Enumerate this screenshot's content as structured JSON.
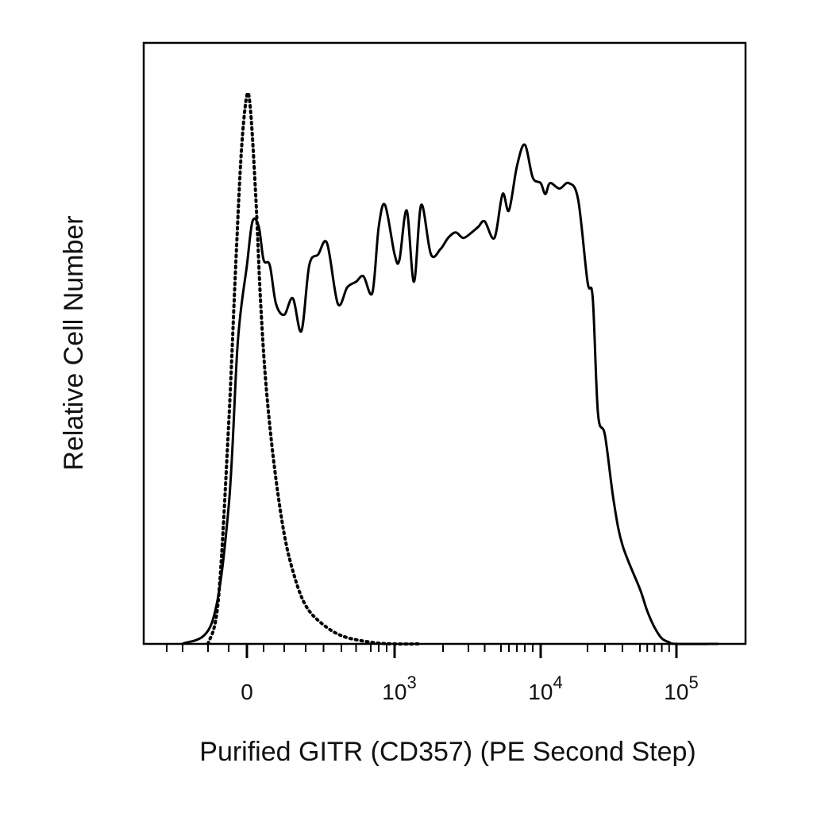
{
  "chart_data": {
    "type": "line",
    "xlabel": "Purified GITR (CD357) (PE Second Step)",
    "ylabel": "Relative Cell Number",
    "xscale": "biexponential (logicle)",
    "xlim": [
      -500,
      200000
    ],
    "ylim": [
      0,
      100
    ],
    "grid": false,
    "legend": "none",
    "x_tick_labels": [
      {
        "value": 0,
        "base": "0",
        "exp": ""
      },
      {
        "value": 1000,
        "base": "10",
        "exp": "3"
      },
      {
        "value": 10000,
        "base": "10",
        "exp": "4"
      },
      {
        "value": 100000,
        "base": "10",
        "exp": "5"
      }
    ],
    "series": [
      {
        "style": "solid",
        "color": "#000000",
        "x": [
          -300,
          -180,
          -100,
          -50,
          0,
          30,
          70,
          100,
          130,
          160,
          200,
          240,
          280,
          320,
          370,
          420,
          480,
          540,
          600,
          650,
          720,
          800,
          880,
          1000,
          1100,
          1250,
          1400,
          1550,
          1750,
          1950,
          2200,
          2500,
          2800,
          3200,
          3600,
          4000,
          4600,
          5200,
          6000,
          7000,
          8000,
          9000,
          10000,
          11000,
          12000,
          14000,
          16000,
          18000,
          20000,
          23000,
          26000,
          30000,
          35000,
          40000,
          50000,
          60000,
          70000,
          80000,
          90000,
          100000,
          200000
        ],
        "y": [
          0,
          4,
          25,
          55,
          69,
          77,
          76,
          70,
          69,
          62,
          60,
          63,
          57,
          69,
          71,
          73,
          62,
          65,
          66,
          67,
          64,
          76,
          80,
          71,
          70,
          79,
          66,
          80,
          71,
          72,
          74,
          75,
          74,
          75,
          76,
          77,
          74,
          82,
          79,
          87,
          91,
          85,
          84,
          82,
          84,
          83,
          84,
          81,
          66,
          63,
          42,
          38,
          26,
          18,
          10,
          6,
          3,
          1,
          0.3,
          0,
          0
        ]
      },
      {
        "style": "dotted",
        "color": "#000000",
        "x": [
          -200,
          -150,
          -100,
          -60,
          -30,
          0,
          20,
          50,
          80,
          110,
          150,
          200,
          250,
          300,
          380,
          500,
          700,
          1000,
          1500
        ],
        "y": [
          0,
          8,
          40,
          70,
          90,
          100,
          97,
          82,
          63,
          48,
          33,
          20,
          12,
          7,
          4,
          1.5,
          0.3,
          0,
          0
        ]
      }
    ]
  }
}
